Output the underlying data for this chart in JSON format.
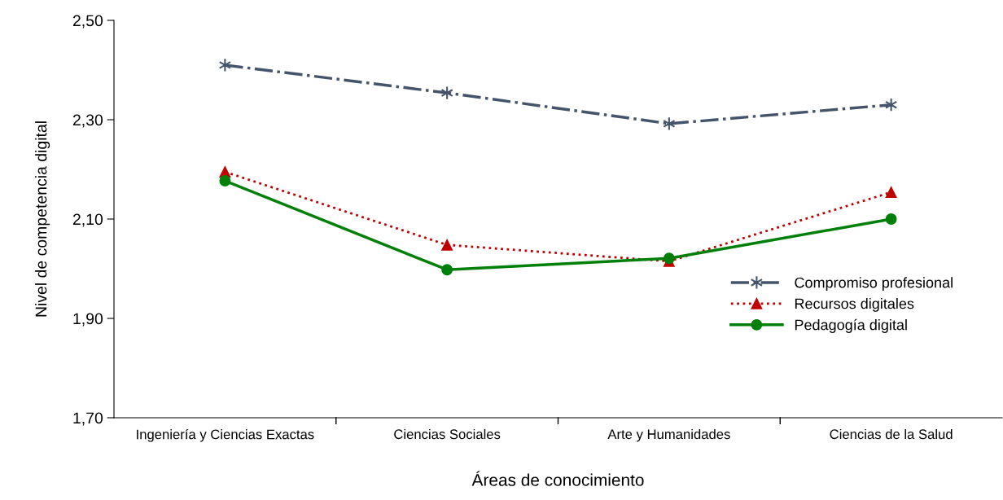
{
  "chart_data": {
    "type": "line",
    "xlabel": "Áreas de conocimiento",
    "ylabel": "Nivel de competencia digital",
    "categories": [
      "Ingeniería y Ciencias Exactas",
      "Ciencias Sociales",
      "Arte y Humanidades",
      "Ciencias de la Salud"
    ],
    "ylim": [
      1.7,
      2.5
    ],
    "yticks": [
      {
        "value": 1.7,
        "label": "1,70"
      },
      {
        "value": 1.9,
        "label": "1,90"
      },
      {
        "value": 2.1,
        "label": "2,10"
      },
      {
        "value": 2.3,
        "label": "2,30"
      },
      {
        "value": 2.5,
        "label": "2,50"
      }
    ],
    "grid": false,
    "legend": "bottom right",
    "series": [
      {
        "name": "Compromiso profesional",
        "color": "#44546a",
        "marker": "cross",
        "line_style": "dashdot",
        "values": [
          2.41,
          2.354,
          2.292,
          2.33
        ]
      },
      {
        "name": "Recursos digitales",
        "color": "#c00000",
        "marker": "triangle",
        "line_style": "dotted",
        "values": [
          2.195,
          2.048,
          2.015,
          2.154
        ]
      },
      {
        "name": "Pedagogía digital",
        "color": "#00800a",
        "marker": "circle",
        "line_style": "solid",
        "values": [
          2.177,
          1.998,
          2.021,
          2.1
        ]
      }
    ]
  }
}
